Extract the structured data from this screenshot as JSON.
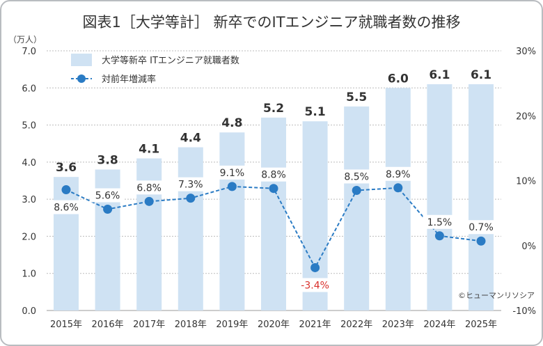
{
  "chart_data": {
    "type": "bar+line",
    "title": "図表1［大学等計］ 新卒でのITエンジニア就職者数の推移",
    "ylabel": "（万人）",
    "categories": [
      "2015年",
      "2016年",
      "2017年",
      "2018年",
      "2019年",
      "2020年",
      "2021年",
      "2022年",
      "2023年",
      "2024年",
      "2025年"
    ],
    "series": [
      {
        "name": "大学等新卒 ITエンジニア就職者数",
        "type": "bar",
        "axis": "left",
        "color": "#cfe2f3",
        "values": [
          3.6,
          3.8,
          4.1,
          4.4,
          4.8,
          5.2,
          5.1,
          5.5,
          6.0,
          6.1,
          6.1
        ]
      },
      {
        "name": "対前年増減率",
        "type": "line",
        "axis": "right",
        "color": "#2a7bc4",
        "negative_label_color": "#d9302c",
        "values": [
          8.6,
          5.6,
          6.8,
          7.3,
          9.1,
          8.8,
          -3.4,
          8.5,
          8.9,
          1.5,
          0.7
        ]
      }
    ],
    "ylim": [
      0,
      7
    ],
    "yticks": [
      "0.0",
      "1.0",
      "2.0",
      "3.0",
      "4.0",
      "5.0",
      "6.0",
      "7.0"
    ],
    "y2lim": [
      -10,
      30
    ],
    "y2ticks": [
      "-10%",
      "0%",
      "10%",
      "20%",
      "30%"
    ],
    "grid": true,
    "legend": "top-left",
    "credit": "©ヒューマンリソシア"
  }
}
